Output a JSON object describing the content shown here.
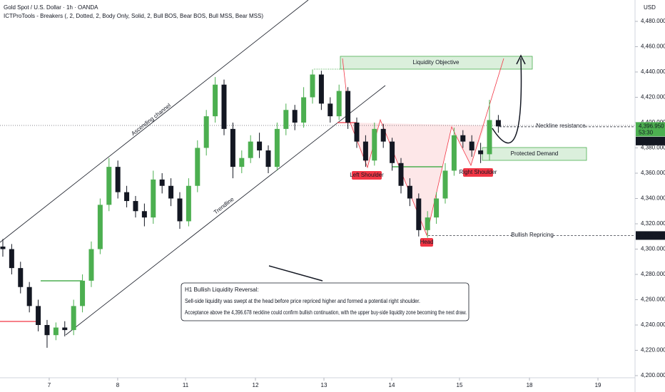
{
  "chart_data": {
    "type": "candlestick",
    "title": "Gold Spot / U.S. Dollar · 1h · OANDA",
    "subtitle": "ICTProTools - Breakers (, 2, Dotted, 2, Body Only, Solid, 2, Bull BOS, Bear BOS, Bull MSS, Bear MSS)",
    "y_unit": "USD",
    "up_color": "#4caf50",
    "down_color": "#131722",
    "grid": false,
    "x": [
      0,
      1,
      2,
      3,
      4,
      5,
      6,
      7,
      8,
      9,
      10,
      11,
      12,
      13,
      14,
      15,
      16,
      17,
      18,
      19,
      20,
      21,
      22,
      23,
      24,
      25,
      26,
      27,
      28,
      29,
      30,
      31,
      32,
      33,
      34,
      35,
      36,
      37,
      38,
      39,
      40,
      41,
      42,
      43,
      44,
      45,
      46,
      47,
      48,
      49,
      50,
      51,
      52,
      53,
      54,
      55,
      56
    ],
    "open": [
      4302,
      4300,
      4285,
      4270,
      4255,
      4240,
      4232,
      4238,
      4236,
      4255,
      4275,
      4300,
      4335,
      4365,
      4345,
      4338,
      4330,
      4325,
      4355,
      4350,
      4340,
      4322,
      4350,
      4380,
      4405,
      4430,
      4395,
      4365,
      4372,
      4385,
      4378,
      4365,
      4395,
      4410,
      4400,
      4420,
      4438,
      4415,
      4405,
      4425,
      4400,
      4385,
      4370,
      4395,
      4385,
      4368,
      4350,
      4340,
      4315,
      4325,
      4340,
      4362,
      4390,
      4385,
      4378,
      4375,
      4402
    ],
    "high": [
      4308,
      4304,
      4290,
      4274,
      4260,
      4244,
      4242,
      4243,
      4260,
      4280,
      4306,
      4340,
      4372,
      4370,
      4350,
      4342,
      4336,
      4362,
      4360,
      4356,
      4345,
      4356,
      4386,
      4410,
      4436,
      4434,
      4400,
      4378,
      4390,
      4392,
      4382,
      4400,
      4415,
      4414,
      4428,
      4442,
      4441,
      4420,
      4430,
      4428,
      4404,
      4390,
      4400,
      4399,
      4388,
      4372,
      4356,
      4344,
      4330,
      4345,
      4368,
      4396,
      4394,
      4390,
      4384,
      4418,
      4406
    ],
    "low": [
      4294,
      4280,
      4265,
      4250,
      4235,
      4222,
      4228,
      4231,
      4232,
      4250,
      4270,
      4296,
      4330,
      4340,
      4333,
      4325,
      4318,
      4320,
      4344,
      4334,
      4316,
      4318,
      4345,
      4374,
      4400,
      4390,
      4356,
      4360,
      4368,
      4372,
      4360,
      4362,
      4390,
      4394,
      4396,
      4415,
      4410,
      4400,
      4402,
      4395,
      4380,
      4365,
      4366,
      4380,
      4362,
      4344,
      4334,
      4310,
      4309,
      4320,
      4336,
      4358,
      4380,
      4373,
      4368,
      4370,
      4392
    ],
    "close": [
      4300,
      4285,
      4270,
      4255,
      4240,
      4232,
      4238,
      4236,
      4255,
      4275,
      4300,
      4335,
      4365,
      4345,
      4338,
      4330,
      4325,
      4355,
      4350,
      4340,
      4322,
      4350,
      4380,
      4405,
      4430,
      4395,
      4365,
      4372,
      4385,
      4378,
      4365,
      4395,
      4410,
      4400,
      4420,
      4438,
      4415,
      4405,
      4425,
      4400,
      4385,
      4370,
      4395,
      4385,
      4368,
      4350,
      4340,
      4315,
      4325,
      4340,
      4362,
      4390,
      4385,
      4378,
      4375,
      4402,
      4397
    ],
    "xlim": [
      -0.32,
      71.45
    ],
    "xticks": [
      {
        "value": 5.24,
        "label": "7"
      },
      {
        "value": 12.98,
        "label": "8"
      },
      {
        "value": 20.65,
        "label": "11"
      },
      {
        "value": 28.55,
        "label": "12"
      },
      {
        "value": 36.29,
        "label": "13"
      },
      {
        "value": 43.95,
        "label": "14"
      },
      {
        "value": 51.61,
        "label": "15"
      },
      {
        "value": 59.52,
        "label": "18"
      },
      {
        "value": 67.26,
        "label": "19"
      }
    ],
    "ylim": [
      4200,
      4480
    ],
    "yticks": [
      {
        "value": 4200,
        "label": "4,200.000"
      },
      {
        "value": 4220,
        "label": "4,220.000"
      },
      {
        "value": 4240,
        "label": "4,240.000"
      },
      {
        "value": 4260,
        "label": "4,260.000"
      },
      {
        "value": 4280,
        "label": "4,280.000"
      },
      {
        "value": 4300,
        "label": "4,300.000"
      },
      {
        "value": 4320,
        "label": "4,320.000"
      },
      {
        "value": 4340,
        "label": "4,340.000"
      },
      {
        "value": 4360,
        "label": "4,360.000"
      },
      {
        "value": 4380,
        "label": "4,380.000"
      },
      {
        "value": 4400,
        "label": "4,400.000"
      },
      {
        "value": 4420,
        "label": "4,420.000"
      },
      {
        "value": 4440,
        "label": "4,440.000"
      },
      {
        "value": 4460,
        "label": "4,460.000"
      },
      {
        "value": 4480,
        "label": "4,480.000"
      }
    ],
    "price_labels": [
      {
        "value": 4396.95,
        "label": "4,396.950",
        "timer": "53:30",
        "color": "#4caf50"
      },
      {
        "value": 4396.678,
        "label": "4,396.678",
        "color": "#131722"
      },
      {
        "value": 4310.736,
        "label": "4,310.736",
        "color": "#131722"
      }
    ],
    "annotations": {
      "channel": "Ascending channel",
      "trendline": "Trendline",
      "liquidity_objective": "Liquidity Objective",
      "protected_demand": "Protected Demand",
      "left_shoulder": "Left Shoulder",
      "head": "Head",
      "right_shoulder": "Right Shoulder",
      "neckline": "Neckline resistance",
      "repricing": "Bullish Repricing"
    },
    "note": {
      "title": "H1 Bullish Liquidity Reversal:",
      "lines": [
        "Sell-side liquidity was swept at the head before price repriced higher and formed a potential right shoulder.",
        "Acceptance above the 4,396.678 neckline could confirm bullish continuation, with the upper buy-side liquidity zone becoming the next draw."
      ]
    }
  }
}
